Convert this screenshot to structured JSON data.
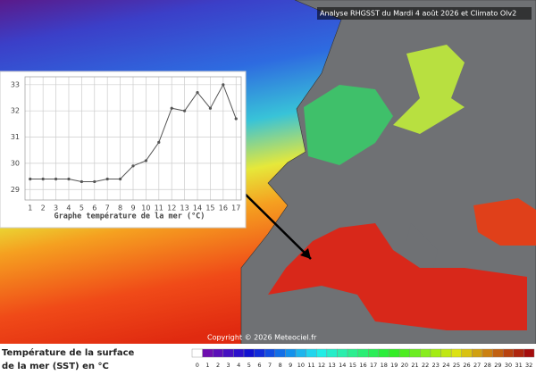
{
  "header": "Analyse RHGSST  du Mardi 4 août 2026 et Climato Olv2",
  "copyright": "Copyright © 2026 Meteociel.fr",
  "legend_title": [
    "Température de la surface",
    "de la mer (SST) en °C"
  ],
  "colorbar_ticks": [
    0,
    1,
    2,
    3,
    4,
    5,
    6,
    7,
    8,
    9,
    10,
    11,
    12,
    13,
    14,
    15,
    16,
    17,
    18,
    19,
    20,
    21,
    22,
    23,
    24,
    25,
    26,
    27,
    28,
    29,
    30,
    31,
    32
  ],
  "chart_data": {
    "type": "line",
    "title": "Graphe température de la mer (°C)",
    "x": [
      1,
      2,
      3,
      4,
      5,
      6,
      7,
      8,
      9,
      10,
      11,
      12,
      13,
      14,
      15,
      16,
      17
    ],
    "values": [
      29.4,
      29.4,
      29.4,
      29.4,
      29.3,
      29.3,
      29.4,
      29.4,
      29.9,
      30.1,
      30.8,
      32.1,
      32.0,
      32.7,
      32.1,
      33.0,
      31.7
    ],
    "color": "#555555",
    "xlim": [
      0.6,
      17.4
    ],
    "ylim": [
      28.6,
      33.3
    ],
    "xticks": [
      1,
      2,
      3,
      4,
      5,
      6,
      7,
      8,
      9,
      10,
      11,
      12,
      13,
      14,
      15,
      16,
      17
    ],
    "yticks": [
      29,
      30,
      31,
      32,
      33
    ],
    "grid": true
  }
}
